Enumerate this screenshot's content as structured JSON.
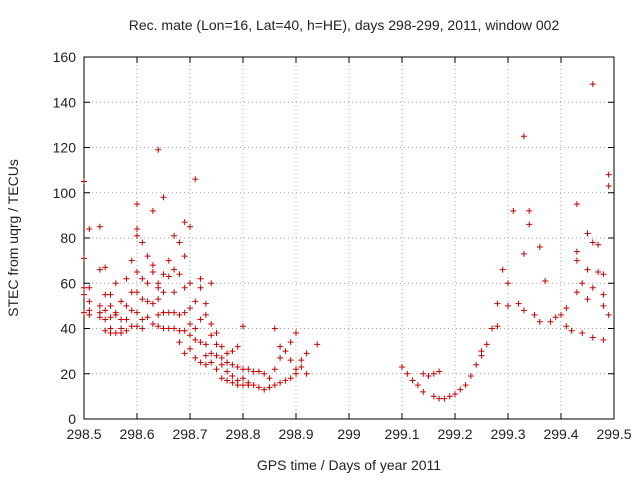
{
  "chart_data": {
    "type": "scatter",
    "title": "Rec. mate (Lon=16, Lat=40, h=HE), days 298-299, 2011, window 002",
    "xlabel": "GPS time / Days of year 2011",
    "ylabel": "STEC from uqrg / TECUs",
    "xlim": [
      298.5,
      299.5
    ],
    "ylim": [
      0,
      160
    ],
    "xticks": [
      "298.5",
      "298.6",
      "298.7",
      "298.8",
      "298.9",
      "299",
      "299.1",
      "299.2",
      "299.3",
      "299.4",
      "299.5"
    ],
    "yticks": [
      "0",
      "20",
      "40",
      "60",
      "80",
      "100",
      "120",
      "140",
      "160"
    ],
    "grid": true,
    "marker": "plus",
    "color": "#cc0000",
    "points": [
      [
        298.5,
        105
      ],
      [
        298.5,
        71
      ],
      [
        298.5,
        58
      ],
      [
        298.5,
        55
      ],
      [
        298.5,
        47
      ],
      [
        298.51,
        84
      ],
      [
        298.51,
        58
      ],
      [
        298.51,
        52
      ],
      [
        298.51,
        46
      ],
      [
        298.51,
        48
      ],
      [
        298.53,
        85
      ],
      [
        298.53,
        66
      ],
      [
        298.53,
        50
      ],
      [
        298.53,
        47
      ],
      [
        298.53,
        45
      ],
      [
        298.54,
        67
      ],
      [
        298.54,
        55
      ],
      [
        298.54,
        48
      ],
      [
        298.54,
        44
      ],
      [
        298.54,
        39
      ],
      [
        298.55,
        55
      ],
      [
        298.55,
        50
      ],
      [
        298.55,
        45
      ],
      [
        298.55,
        40
      ],
      [
        298.55,
        38
      ],
      [
        298.56,
        60
      ],
      [
        298.56,
        47
      ],
      [
        298.56,
        38
      ],
      [
        298.56,
        46
      ],
      [
        298.57,
        52
      ],
      [
        298.57,
        44
      ],
      [
        298.57,
        40
      ],
      [
        298.57,
        38
      ],
      [
        298.58,
        62
      ],
      [
        298.58,
        50
      ],
      [
        298.58,
        44
      ],
      [
        298.58,
        39
      ],
      [
        298.59,
        70
      ],
      [
        298.59,
        56
      ],
      [
        298.59,
        48
      ],
      [
        298.59,
        41
      ],
      [
        298.6,
        95
      ],
      [
        298.6,
        84
      ],
      [
        298.6,
        81
      ],
      [
        298.6,
        65
      ],
      [
        298.6,
        56
      ],
      [
        298.6,
        47
      ],
      [
        298.6,
        41
      ],
      [
        298.61,
        78
      ],
      [
        298.61,
        62
      ],
      [
        298.61,
        53
      ],
      [
        298.61,
        44
      ],
      [
        298.61,
        40
      ],
      [
        298.62,
        72
      ],
      [
        298.62,
        60
      ],
      [
        298.62,
        52
      ],
      [
        298.62,
        45
      ],
      [
        298.63,
        92
      ],
      [
        298.63,
        68
      ],
      [
        298.63,
        65
      ],
      [
        298.63,
        51
      ],
      [
        298.63,
        42
      ],
      [
        298.64,
        119
      ],
      [
        298.64,
        60
      ],
      [
        298.64,
        58
      ],
      [
        298.64,
        53
      ],
      [
        298.64,
        46
      ],
      [
        298.64,
        41
      ],
      [
        298.65,
        98
      ],
      [
        298.65,
        64
      ],
      [
        298.65,
        56
      ],
      [
        298.65,
        47
      ],
      [
        298.65,
        40
      ],
      [
        298.66,
        70
      ],
      [
        298.66,
        63
      ],
      [
        298.66,
        47
      ],
      [
        298.66,
        40
      ],
      [
        298.67,
        81
      ],
      [
        298.67,
        66
      ],
      [
        298.67,
        56
      ],
      [
        298.67,
        47
      ],
      [
        298.67,
        40
      ],
      [
        298.68,
        78
      ],
      [
        298.68,
        64
      ],
      [
        298.68,
        46
      ],
      [
        298.68,
        39
      ],
      [
        298.68,
        34
      ],
      [
        298.69,
        87
      ],
      [
        298.69,
        72
      ],
      [
        298.69,
        58
      ],
      [
        298.69,
        47
      ],
      [
        298.69,
        39
      ],
      [
        298.69,
        29
      ],
      [
        298.7,
        85
      ],
      [
        298.7,
        60
      ],
      [
        298.7,
        49
      ],
      [
        298.7,
        42
      ],
      [
        298.7,
        37
      ],
      [
        298.7,
        31
      ],
      [
        298.71,
        106
      ],
      [
        298.71,
        52
      ],
      [
        298.71,
        40
      ],
      [
        298.71,
        35
      ],
      [
        298.71,
        27
      ],
      [
        298.72,
        62
      ],
      [
        298.72,
        58
      ],
      [
        298.72,
        44
      ],
      [
        298.72,
        34
      ],
      [
        298.72,
        25
      ],
      [
        298.73,
        51
      ],
      [
        298.73,
        46
      ],
      [
        298.73,
        33
      ],
      [
        298.73,
        28
      ],
      [
        298.73,
        24
      ],
      [
        298.74,
        60
      ],
      [
        298.74,
        42
      ],
      [
        298.74,
        37
      ],
      [
        298.74,
        29
      ],
      [
        298.74,
        25
      ],
      [
        298.75,
        38
      ],
      [
        298.75,
        33
      ],
      [
        298.75,
        28
      ],
      [
        298.75,
        22
      ],
      [
        298.76,
        32
      ],
      [
        298.76,
        27
      ],
      [
        298.76,
        24
      ],
      [
        298.76,
        18
      ],
      [
        298.77,
        29
      ],
      [
        298.77,
        25
      ],
      [
        298.77,
        21
      ],
      [
        298.77,
        17
      ],
      [
        298.78,
        30
      ],
      [
        298.78,
        24
      ],
      [
        298.78,
        19
      ],
      [
        298.78,
        16
      ],
      [
        298.79,
        32
      ],
      [
        298.79,
        23
      ],
      [
        298.79,
        17
      ],
      [
        298.79,
        15
      ],
      [
        298.8,
        41
      ],
      [
        298.8,
        22
      ],
      [
        298.8,
        18
      ],
      [
        298.8,
        15
      ],
      [
        298.81,
        22
      ],
      [
        298.81,
        16
      ],
      [
        298.81,
        15
      ],
      [
        298.82,
        21
      ],
      [
        298.82,
        15
      ],
      [
        298.83,
        21
      ],
      [
        298.83,
        14
      ],
      [
        298.84,
        20
      ],
      [
        298.84,
        13
      ],
      [
        298.85,
        18
      ],
      [
        298.85,
        14
      ],
      [
        298.86,
        22
      ],
      [
        298.86,
        40
      ],
      [
        298.86,
        15
      ],
      [
        298.87,
        32
      ],
      [
        298.87,
        27
      ],
      [
        298.87,
        16
      ],
      [
        298.88,
        30
      ],
      [
        298.88,
        17
      ],
      [
        298.89,
        34
      ],
      [
        298.89,
        26
      ],
      [
        298.89,
        18
      ],
      [
        298.9,
        38
      ],
      [
        298.9,
        22
      ],
      [
        298.9,
        20
      ],
      [
        298.91,
        26
      ],
      [
        298.91,
        23
      ],
      [
        298.92,
        29
      ],
      [
        298.92,
        20
      ],
      [
        298.94,
        33
      ],
      [
        299.1,
        23
      ],
      [
        299.11,
        20
      ],
      [
        299.12,
        17
      ],
      [
        299.13,
        15
      ],
      [
        299.14,
        20
      ],
      [
        299.14,
        12
      ],
      [
        299.15,
        19
      ],
      [
        299.16,
        20
      ],
      [
        299.16,
        10
      ],
      [
        299.17,
        21
      ],
      [
        299.17,
        9
      ],
      [
        299.18,
        9
      ],
      [
        299.19,
        10
      ],
      [
        299.2,
        11
      ],
      [
        299.21,
        13
      ],
      [
        299.22,
        15
      ],
      [
        299.23,
        19
      ],
      [
        299.24,
        24
      ],
      [
        299.25,
        28
      ],
      [
        299.25,
        30
      ],
      [
        299.26,
        33
      ],
      [
        299.27,
        40
      ],
      [
        299.28,
        41
      ],
      [
        299.28,
        51
      ],
      [
        299.29,
        66
      ],
      [
        299.3,
        60
      ],
      [
        299.3,
        50
      ],
      [
        299.31,
        92
      ],
      [
        299.32,
        51
      ],
      [
        299.33,
        125
      ],
      [
        299.33,
        73
      ],
      [
        299.33,
        48
      ],
      [
        299.34,
        92
      ],
      [
        299.34,
        86
      ],
      [
        299.35,
        46
      ],
      [
        299.36,
        76
      ],
      [
        299.36,
        43
      ],
      [
        299.37,
        61
      ],
      [
        299.38,
        43
      ],
      [
        299.39,
        45
      ],
      [
        299.4,
        46
      ],
      [
        299.41,
        49
      ],
      [
        299.41,
        41
      ],
      [
        299.42,
        39
      ],
      [
        299.43,
        95
      ],
      [
        299.43,
        74
      ],
      [
        299.43,
        70
      ],
      [
        299.43,
        56
      ],
      [
        299.44,
        60
      ],
      [
        299.44,
        38
      ],
      [
        299.45,
        82
      ],
      [
        299.45,
        66
      ],
      [
        299.45,
        53
      ],
      [
        299.46,
        148
      ],
      [
        299.46,
        78
      ],
      [
        299.46,
        58
      ],
      [
        299.46,
        36
      ],
      [
        299.47,
        77
      ],
      [
        299.47,
        65
      ],
      [
        299.48,
        64
      ],
      [
        299.48,
        50
      ],
      [
        299.48,
        55
      ],
      [
        299.48,
        35
      ],
      [
        299.49,
        108
      ],
      [
        299.49,
        103
      ],
      [
        299.49,
        46
      ]
    ]
  }
}
